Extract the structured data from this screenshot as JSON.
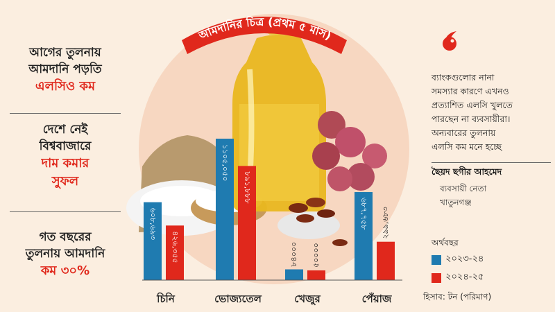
{
  "title": "আমদানির চিত্র (প্রথম ৫ মাস)",
  "left_panel": {
    "block1_line1": "আগের তুলনায়",
    "block1_line2": "আমদানি পড়তি",
    "block1_highlight": "এলসিও কম",
    "block2_line1": "দেশে নেই",
    "block2_line2": "বিশ্ববাজারে",
    "block2_highlight1": "দাম কমার",
    "block2_highlight2": "সুফল",
    "block3_line1": "গত বছরের",
    "block3_line2": "তুলনায় আমদানি",
    "block3_highlight": "কম ৩০%"
  },
  "quote": {
    "line1": "ব্যাংকগুলোর নানা",
    "line2": "সমস্যার কারণে এখনও",
    "line3": "প্রত্যাশিত এলসি খুলতে",
    "line4": "পারছেন না ব্যবসায়ীরা।",
    "line5": "অন্যবারের তুলনায়",
    "line6": "এলসি কম মনে হচ্ছে",
    "author": "ছৈয়দ ছগীর আহমেদ",
    "role1": "ব্যবসায়ী নেতা",
    "role2": "খাতুনগঞ্জ"
  },
  "legend": {
    "title": "অর্থবছর",
    "note": "হিসাব: টন (পরিমাণ)"
  },
  "colors": {
    "series_2023": "#1f7bb0",
    "series_2024": "#e0281c",
    "accent_red": "#e0281c",
    "background": "#fbeee0"
  },
  "chart_data": {
    "type": "bar",
    "title": "আমদানির চিত্র (প্রথম ৫ মাস)",
    "categories": [
      "চিনি",
      "ভোজ্যতেল",
      "খেজুর",
      "পেঁয়াজ"
    ],
    "series": [
      {
        "name": "২০২৩-২৪",
        "color": "#1f7bb0",
        "values": [
          608693,
          1105050,
          84000,
          687758
        ],
        "labels": [
          "৬০৮,৬৯৩",
          "১১০৫,০৫০",
          "৮৪০০০",
          "৬৮৭,৭৫৮"
        ]
      },
      {
        "name": "২০২৪-২৫",
        "color": "#e0281c",
        "values": [
          426355,
          891888,
          50000,
          299683
        ],
        "labels": [
          "৪২৬,৩৫৫",
          "৮৯১,৮৮৮",
          "৫০০০০",
          "২৯৯,৬৮৩"
        ]
      }
    ],
    "ylim": [
      0,
      1105050
    ],
    "legend": "right"
  }
}
